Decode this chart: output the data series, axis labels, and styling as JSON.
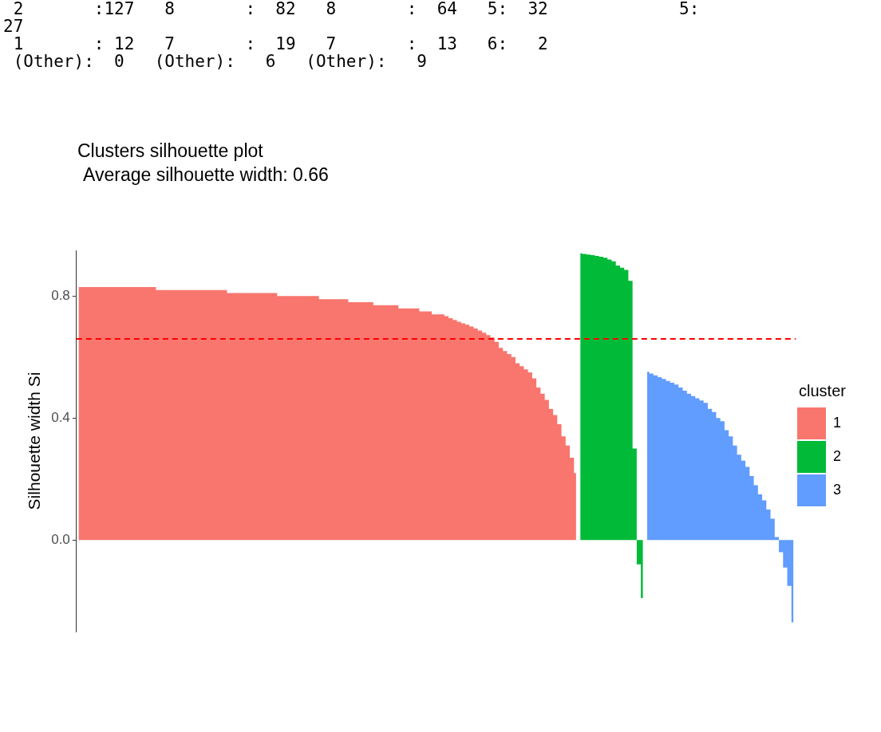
{
  "chart_data": {
    "type": "area",
    "title": "Clusters silhouette plot",
    "subtitle": "Average silhouette width: 0.66",
    "ylabel": "Silhouette width Si",
    "legend_title": "cluster",
    "legend": "right",
    "grid": false,
    "tick_labels": "y",
    "annotations": [
      " 2       :127   8       :  82   8       :  64   5:  32             5:",
      "27",
      " 1       : 12   7       :  19   7       :  13   6:   2",
      " (Other):  0   (Other):   6   (Other):   9"
    ],
    "ylim": [
      -0.3,
      0.95
    ],
    "yticks": [
      {
        "value": 0,
        "label": "0.0"
      },
      {
        "value": 0.4,
        "label": "0.4"
      },
      {
        "value": 0.8,
        "label": "0.8"
      }
    ],
    "ref_lines": [
      {
        "axis": "y",
        "value": 0.66,
        "color": "#ff0000",
        "line_style": "dashed"
      }
    ],
    "categories": [
      null,
      null,
      null,
      null,
      null,
      null,
      null,
      null,
      null,
      null,
      null,
      null,
      null,
      null,
      null,
      null,
      null,
      null,
      null,
      null,
      null,
      null,
      null,
      null,
      null,
      null,
      null,
      null,
      null,
      null,
      null,
      null,
      null,
      null,
      null,
      null,
      null,
      null,
      null,
      null,
      null,
      null,
      null,
      null,
      null,
      null,
      null,
      null,
      null,
      null,
      null,
      null,
      null,
      null,
      null,
      null,
      null,
      null,
      null,
      null,
      null,
      null,
      null,
      null,
      null,
      null,
      null,
      null,
      null,
      null,
      null,
      null,
      null,
      null,
      null,
      null,
      null,
      null,
      null,
      null,
      null,
      null,
      null,
      null,
      null,
      null,
      null,
      null,
      null,
      null,
      null,
      null,
      null,
      null,
      null,
      null,
      null,
      null,
      null,
      null,
      null,
      null,
      null,
      null,
      null,
      null,
      null,
      null,
      null,
      null,
      null,
      null,
      null,
      null,
      null,
      null,
      null,
      null,
      null,
      null,
      null,
      null,
      null,
      null,
      null,
      null,
      null,
      null,
      null,
      null,
      null,
      null,
      null,
      null,
      null,
      null,
      null,
      null,
      null,
      null,
      null,
      null,
      null,
      null,
      null,
      null,
      null,
      null,
      null,
      null,
      null,
      null,
      null,
      null,
      null,
      null,
      null,
      null,
      null,
      null,
      null,
      null,
      null,
      null,
      null,
      null,
      null,
      null,
      null,
      null,
      null,
      null
    ],
    "series": [
      {
        "name": "1",
        "color": "#f8766d",
        "values": [
          0.83,
          0.83,
          0.83,
          0.83,
          0.83,
          0.83,
          0.83,
          0.83,
          0.83,
          0.83,
          0.83,
          0.83,
          0.83,
          0.83,
          0.83,
          0.83,
          0.83,
          0.83,
          0.83,
          0.82,
          0.82,
          0.82,
          0.82,
          0.82,
          0.82,
          0.82,
          0.82,
          0.82,
          0.82,
          0.82,
          0.82,
          0.82,
          0.82,
          0.82,
          0.82,
          0.82,
          0.81,
          0.81,
          0.81,
          0.81,
          0.81,
          0.81,
          0.81,
          0.81,
          0.81,
          0.81,
          0.81,
          0.81,
          0.8,
          0.8,
          0.8,
          0.8,
          0.8,
          0.8,
          0.8,
          0.8,
          0.8,
          0.8,
          0.79,
          0.79,
          0.79,
          0.79,
          0.79,
          0.79,
          0.79,
          0.78,
          0.78,
          0.78,
          0.78,
          0.78,
          0.78,
          0.77,
          0.77,
          0.77,
          0.77,
          0.77,
          0.77,
          0.76,
          0.76,
          0.76,
          0.76,
          0.76,
          0.75,
          0.75,
          0.75,
          0.74,
          0.74,
          0.74,
          0.734,
          0.728,
          0.722,
          0.716,
          0.711,
          0.706,
          0.7,
          0.694,
          0.687,
          0.68,
          0.672,
          0.664,
          0.65,
          0.63,
          0.62,
          0.61,
          0.6,
          0.58,
          0.57,
          0.56,
          0.55,
          0.53,
          0.5,
          0.48,
          0.46,
          0.43,
          0.41,
          0.38,
          0.34,
          0.31,
          0.27,
          0.22,
          null,
          null,
          null,
          null,
          null,
          null,
          null,
          null,
          null,
          null,
          null,
          null,
          null,
          null,
          null,
          null,
          null,
          null,
          null,
          null,
          null,
          null,
          null,
          null,
          null,
          null,
          null,
          null,
          null,
          null,
          null,
          null,
          null,
          null,
          null,
          null,
          null,
          null,
          null,
          null,
          null,
          null,
          null,
          null,
          null,
          null,
          null,
          null,
          null,
          null,
          null,
          null
        ]
      },
      {
        "name": "2",
        "color": "#00ba38",
        "values": [
          null,
          null,
          null,
          null,
          null,
          null,
          null,
          null,
          null,
          null,
          null,
          null,
          null,
          null,
          null,
          null,
          null,
          null,
          null,
          null,
          null,
          null,
          null,
          null,
          null,
          null,
          null,
          null,
          null,
          null,
          null,
          null,
          null,
          null,
          null,
          null,
          null,
          null,
          null,
          null,
          null,
          null,
          null,
          null,
          null,
          null,
          null,
          null,
          null,
          null,
          null,
          null,
          null,
          null,
          null,
          null,
          null,
          null,
          null,
          null,
          null,
          null,
          null,
          null,
          null,
          null,
          null,
          null,
          null,
          null,
          null,
          null,
          null,
          null,
          null,
          null,
          null,
          null,
          null,
          null,
          null,
          null,
          null,
          null,
          null,
          null,
          null,
          null,
          null,
          null,
          null,
          null,
          null,
          null,
          null,
          null,
          null,
          null,
          null,
          null,
          null,
          null,
          null,
          null,
          null,
          null,
          null,
          null,
          null,
          null,
          null,
          null,
          null,
          null,
          null,
          null,
          null,
          null,
          null,
          null,
          0.94,
          0.938,
          0.936,
          0.934,
          0.932,
          0.929,
          0.926,
          0.92,
          0.914,
          0.9,
          0.893,
          0.886,
          0.85,
          0.3,
          -0.08,
          -0.19,
          null,
          null,
          null,
          null,
          null,
          null,
          null,
          null,
          null,
          null,
          null,
          null,
          null,
          null,
          null,
          null,
          null,
          null,
          null,
          null,
          null,
          null,
          null,
          null,
          null,
          null,
          null,
          null,
          null,
          null,
          null,
          null,
          null,
          null,
          null,
          null
        ]
      },
      {
        "name": "3",
        "color": "#619cff",
        "values": [
          null,
          null,
          null,
          null,
          null,
          null,
          null,
          null,
          null,
          null,
          null,
          null,
          null,
          null,
          null,
          null,
          null,
          null,
          null,
          null,
          null,
          null,
          null,
          null,
          null,
          null,
          null,
          null,
          null,
          null,
          null,
          null,
          null,
          null,
          null,
          null,
          null,
          null,
          null,
          null,
          null,
          null,
          null,
          null,
          null,
          null,
          null,
          null,
          null,
          null,
          null,
          null,
          null,
          null,
          null,
          null,
          null,
          null,
          null,
          null,
          null,
          null,
          null,
          null,
          null,
          null,
          null,
          null,
          null,
          null,
          null,
          null,
          null,
          null,
          null,
          null,
          null,
          null,
          null,
          null,
          null,
          null,
          null,
          null,
          null,
          null,
          null,
          null,
          null,
          null,
          null,
          null,
          null,
          null,
          null,
          null,
          null,
          null,
          null,
          null,
          null,
          null,
          null,
          null,
          null,
          null,
          null,
          null,
          null,
          null,
          null,
          null,
          null,
          null,
          null,
          null,
          null,
          null,
          null,
          null,
          null,
          null,
          null,
          null,
          null,
          null,
          null,
          null,
          null,
          null,
          null,
          null,
          null,
          null,
          null,
          null,
          0.552,
          0.546,
          0.54,
          0.534,
          0.528,
          0.522,
          0.516,
          0.51,
          0.5,
          0.49,
          0.48,
          0.472,
          0.465,
          0.458,
          0.45,
          0.43,
          0.42,
          0.4,
          0.39,
          0.36,
          0.34,
          0.31,
          0.28,
          0.26,
          0.24,
          0.21,
          0.18,
          0.15,
          0.13,
          0.1,
          0.07,
          0.01,
          -0.04,
          -0.09,
          -0.15,
          -0.27
        ]
      }
    ]
  }
}
